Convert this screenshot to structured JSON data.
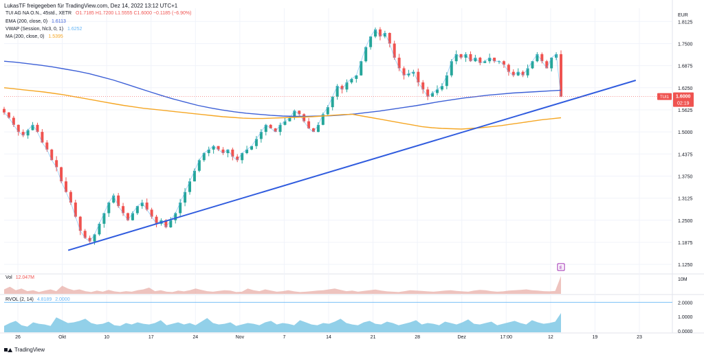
{
  "header": {
    "caption": "LukasTF freigegeben für TradingView.com, Dez 14, 2022 13:12 UTC+1",
    "symbol_line": "TUI AG NA O.N., 45std., XETR",
    "ohlc": "O1.7185  H1.7200  L1.5555  C1.6000  −0.1185 (−6.90%)",
    "ema_label": "EMA (200, close, 0)",
    "ema_value": "1.6113",
    "vwap_label": "VWAP (Session, hlc3, 0, 1)",
    "vwap_value": "1.6252",
    "ma_label": "MA (200, close, 0)",
    "ma_value": "1.5395"
  },
  "volume_legend": {
    "label": "Vol",
    "value": "12.047M"
  },
  "rvol_legend": {
    "label": "RVOL (2, 14)",
    "value1": "4.8189",
    "value2": "2.0000"
  },
  "brand": {
    "name": "TradingView"
  },
  "colors": {
    "up": "#26a69a",
    "down": "#ef5350",
    "ema": "#3c5fd6",
    "ma": "#f5a623",
    "trendline": "#2f5bde",
    "vwap": "#64b5f6",
    "rvol": "#7fc8e5",
    "grid": "#f0f3fa",
    "axis_text": "#131722",
    "earnings_marker": "#9c27b0"
  },
  "chart_data": {
    "type": "candlestick",
    "currency": "EUR",
    "price_axis": {
      "ticks": [
        "1.8125",
        "1.7500",
        "1.6875",
        "1.6250",
        "1.5625",
        "1.5000",
        "1.4375",
        "1.3750",
        "1.3125",
        "1.2500",
        "1.1875",
        "1.1250"
      ],
      "range": [
        1.1,
        1.85
      ]
    },
    "time_axis": [
      "26",
      "Okt",
      "10",
      "17",
      "24",
      "Nov",
      "7",
      "14",
      "21",
      "28",
      "Dez",
      "17:00",
      "12",
      "19",
      "23"
    ],
    "price_tag": {
      "symbol": "TUI1",
      "price": "1.6000",
      "countdown": "02:19"
    },
    "volume_axis_label": "10M",
    "rvol_axis": [
      "2.0000",
      "1.0000",
      "0.0000"
    ],
    "earnings_marker": "E",
    "grid": true,
    "legend_position": "top-left",
    "price_path": [
      1.555,
      1.54,
      1.52,
      1.5,
      1.49,
      1.505,
      1.52,
      1.5,
      1.47,
      1.45,
      1.42,
      1.4,
      1.36,
      1.33,
      1.3,
      1.26,
      1.22,
      1.2,
      1.19,
      1.21,
      1.24,
      1.27,
      1.3,
      1.32,
      1.29,
      1.27,
      1.25,
      1.27,
      1.29,
      1.3,
      1.28,
      1.26,
      1.24,
      1.25,
      1.23,
      1.25,
      1.27,
      1.3,
      1.33,
      1.36,
      1.39,
      1.42,
      1.44,
      1.45,
      1.46,
      1.45,
      1.44,
      1.45,
      1.43,
      1.42,
      1.44,
      1.45,
      1.46,
      1.48,
      1.5,
      1.52,
      1.51,
      1.5,
      1.52,
      1.53,
      1.54,
      1.56,
      1.55,
      1.53,
      1.51,
      1.5,
      1.52,
      1.55,
      1.57,
      1.6,
      1.63,
      1.62,
      1.64,
      1.65,
      1.66,
      1.7,
      1.74,
      1.77,
      1.79,
      1.77,
      1.78,
      1.75,
      1.71,
      1.68,
      1.66,
      1.665,
      1.67,
      1.64,
      1.62,
      1.6,
      1.61,
      1.62,
      1.63,
      1.66,
      1.7,
      1.72,
      1.71,
      1.72,
      1.7,
      1.71,
      1.695,
      1.7,
      1.71,
      1.7,
      1.7,
      1.69,
      1.67,
      1.66,
      1.67,
      1.66,
      1.68,
      1.7,
      1.72,
      1.7,
      1.68,
      1.71,
      1.72,
      1.6
    ],
    "ema_path": [
      1.7,
      1.697,
      1.693,
      1.689,
      1.684,
      1.678,
      1.672,
      1.665,
      1.656,
      1.647,
      1.636,
      1.625,
      1.614,
      1.603,
      1.593,
      1.584,
      1.575,
      1.568,
      1.562,
      1.557,
      1.553,
      1.55,
      1.547,
      1.545,
      1.544,
      1.544,
      1.545,
      1.546,
      1.548,
      1.551,
      1.555,
      1.559,
      1.564,
      1.569,
      1.574,
      1.58,
      1.586,
      1.591,
      1.596,
      1.6,
      1.604,
      1.607,
      1.61,
      1.612,
      1.614,
      1.616,
      1.618
    ],
    "ma_path": [
      1.625,
      1.622,
      1.619,
      1.616,
      1.613,
      1.609,
      1.605,
      1.6,
      1.595,
      1.59,
      1.585,
      1.58,
      1.575,
      1.571,
      1.567,
      1.564,
      1.561,
      1.558,
      1.555,
      1.552,
      1.549,
      1.546,
      1.543,
      1.541,
      1.539,
      1.538,
      1.538,
      1.539,
      1.54,
      1.541,
      1.542,
      1.543,
      1.545,
      1.547,
      1.549,
      1.55,
      1.545,
      1.54,
      1.535,
      1.53,
      1.525,
      1.52,
      1.515,
      1.512,
      1.51,
      1.509,
      1.508,
      1.51,
      1.512,
      1.515,
      1.518,
      1.522,
      1.526,
      1.53,
      1.534,
      1.537,
      1.54
    ],
    "trendline": {
      "start": {
        "bar": 0.115,
        "price": 1.165
      },
      "end": {
        "bar": 0.995,
        "price": 1.646
      }
    },
    "volume_path": [
      0.25,
      0.4,
      0.2,
      0.3,
      0.15,
      0.2,
      0.1,
      0.18,
      0.25,
      0.15,
      0.45,
      0.3,
      0.2,
      0.25,
      0.15,
      0.1,
      0.18,
      0.12,
      0.22,
      0.14,
      0.1,
      0.15,
      0.12,
      0.2,
      0.25,
      0.35,
      0.15,
      0.2,
      0.12,
      0.1,
      0.18,
      0.14,
      0.2,
      0.3,
      0.22,
      0.15,
      0.12,
      0.16,
      0.2,
      0.18,
      0.1,
      0.12,
      0.3,
      0.2,
      0.15,
      0.25,
      0.18,
      0.12,
      0.15,
      0.2,
      0.14,
      0.1,
      0.12,
      0.15,
      0.18,
      0.2,
      0.25,
      0.3,
      0.22,
      0.15,
      0.18,
      0.12,
      0.16,
      0.2,
      0.24,
      0.18,
      0.14,
      0.12,
      0.1,
      0.15,
      0.2,
      0.18,
      0.16,
      0.14,
      0.12,
      0.15,
      0.18,
      0.2,
      0.16,
      0.14,
      0.12,
      0.18,
      0.22,
      0.2,
      0.15,
      0.12,
      0.14,
      0.18,
      0.2,
      0.22,
      0.25,
      0.2,
      0.18,
      0.15,
      0.14,
      0.16,
      1.0
    ],
    "rvol_path": [
      0.35,
      0.55,
      0.7,
      0.4,
      0.3,
      0.6,
      0.5,
      0.45,
      0.35,
      0.95,
      0.75,
      0.55,
      0.6,
      0.7,
      0.85,
      0.55,
      0.45,
      0.5,
      0.65,
      0.4,
      0.35,
      0.55,
      0.45,
      0.6,
      0.5,
      0.45,
      0.55,
      0.75,
      0.4,
      0.5,
      0.6,
      0.45,
      0.55,
      0.4,
      0.65,
      0.9,
      0.55,
      0.45,
      0.5,
      0.6,
      0.35,
      0.45,
      0.55,
      0.5,
      0.4,
      0.6,
      0.7,
      0.45,
      0.55,
      0.5,
      0.4,
      0.75,
      0.6,
      0.45,
      0.4,
      0.55,
      0.5,
      0.65,
      0.85,
      0.55,
      0.45,
      0.4,
      0.6,
      0.7,
      0.5,
      0.45,
      0.65,
      0.55,
      0.4,
      0.5,
      0.6,
      0.75,
      0.45,
      0.55,
      0.5,
      0.4,
      0.65,
      0.55,
      0.45,
      0.6,
      0.8,
      0.5,
      0.45,
      0.55,
      0.65,
      0.4,
      0.5,
      0.6,
      0.7,
      0.55,
      0.45,
      0.75,
      0.6,
      0.5,
      0.55,
      0.65,
      1.25
    ]
  }
}
